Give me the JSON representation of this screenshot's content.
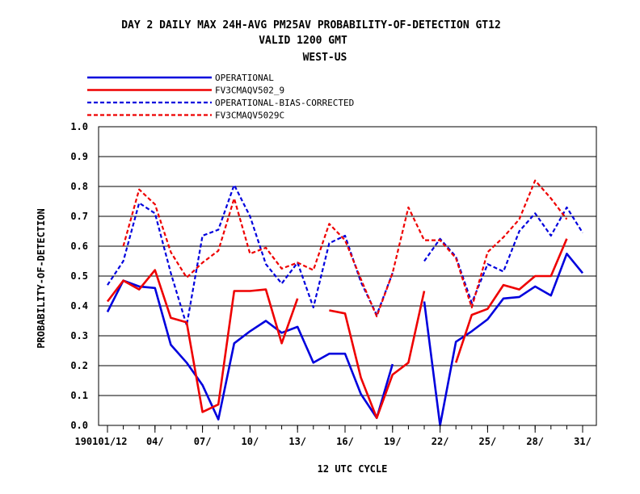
{
  "chart_data": {
    "type": "line",
    "title": {
      "line1": "DAY 2 DAILY MAX   24H-AVG PM25AV PROBABILITY-OF-DETECTION GT12",
      "line2": "VALID 1200 GMT",
      "line3": "WEST-US"
    },
    "xlabel": "12 UTC CYCLE",
    "ylabel": "PROBABILITY-OF-DETECTION",
    "ylim": [
      0.0,
      1.0
    ],
    "yticks": [
      "0.0",
      "0.1",
      "0.2",
      "0.3",
      "0.4",
      "0.5",
      "0.6",
      "0.7",
      "0.8",
      "0.9",
      "1.0"
    ],
    "x": [
      "01",
      "02",
      "03",
      "04",
      "05",
      "06",
      "07",
      "08",
      "09",
      "10",
      "11",
      "12",
      "13",
      "14",
      "15",
      "16",
      "17",
      "18",
      "19",
      "20",
      "21",
      "22",
      "23",
      "24",
      "25",
      "26",
      "27",
      "28",
      "29",
      "30",
      "31"
    ],
    "xticks": [
      {
        "day": 1,
        "label": "190101/12"
      },
      {
        "day": 4,
        "label": "04/"
      },
      {
        "day": 7,
        "label": "07/"
      },
      {
        "day": 10,
        "label": "10/"
      },
      {
        "day": 13,
        "label": "13/"
      },
      {
        "day": 16,
        "label": "16/"
      },
      {
        "day": 19,
        "label": "19/"
      },
      {
        "day": 22,
        "label": "22/"
      },
      {
        "day": 25,
        "label": "25/"
      },
      {
        "day": 28,
        "label": "28/"
      },
      {
        "day": 31,
        "label": "31/"
      }
    ],
    "grid": true,
    "legend": "top-left",
    "series": [
      {
        "name": "OPERATIONAL",
        "color": "#0000dd",
        "dash": "solid",
        "values": [
          0.38,
          0.485,
          0.465,
          0.46,
          0.27,
          0.21,
          0.135,
          0.02,
          0.275,
          0.315,
          0.35,
          0.31,
          0.33,
          0.21,
          0.24,
          0.24,
          0.105,
          0.025,
          0.205,
          null,
          0.415,
          0.0,
          0.28,
          0.315,
          0.355,
          0.425,
          0.43,
          0.465,
          0.435,
          0.575,
          0.51
        ]
      },
      {
        "name": "FV3CMAQV502_9",
        "color": "#ee0000",
        "dash": "solid",
        "values": [
          0.415,
          0.485,
          0.455,
          0.52,
          0.36,
          0.345,
          0.045,
          0.07,
          0.45,
          0.45,
          0.455,
          0.275,
          0.425,
          null,
          0.385,
          0.375,
          0.16,
          0.025,
          0.17,
          0.21,
          0.45,
          null,
          0.21,
          0.37,
          0.39,
          0.47,
          0.455,
          0.5,
          0.5,
          0.625,
          null
        ]
      },
      {
        "name": "OPERATIONAL-BIAS-CORRECTED",
        "color": "#0000dd",
        "dash": "dashed",
        "values": [
          0.47,
          0.55,
          0.745,
          0.71,
          0.51,
          0.335,
          0.635,
          0.655,
          0.805,
          0.7,
          0.54,
          0.475,
          0.545,
          0.395,
          0.61,
          0.635,
          0.48,
          0.37,
          0.51,
          null,
          0.55,
          0.625,
          0.565,
          0.41,
          0.54,
          0.515,
          0.65,
          0.71,
          0.635,
          0.73,
          0.645
        ]
      },
      {
        "name": "FV3CMAQV5029C",
        "color": "#ee0000",
        "dash": "dashed",
        "values": [
          null,
          0.6,
          0.79,
          0.74,
          0.58,
          0.495,
          0.545,
          0.585,
          0.76,
          0.575,
          0.595,
          0.525,
          0.545,
          0.52,
          0.675,
          0.62,
          0.49,
          0.365,
          0.51,
          0.73,
          0.62,
          0.62,
          0.56,
          0.395,
          0.58,
          0.63,
          0.69,
          0.82,
          0.76,
          0.69,
          null
        ]
      }
    ]
  }
}
